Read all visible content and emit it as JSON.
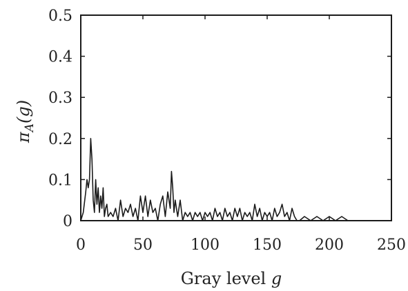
{
  "chart_data": {
    "type": "line",
    "title": "",
    "xlabel": "Gray level",
    "xlabel_var": "g",
    "ylabel": "π_A(g)",
    "ylabel_parts": {
      "pi": "π",
      "sub": "A",
      "arg": "(g)"
    },
    "xlim": [
      0,
      250
    ],
    "ylim": [
      0,
      0.5
    ],
    "xticks": [
      0,
      50,
      100,
      150,
      200,
      250
    ],
    "xtick_labels": [
      "0",
      "50",
      "100",
      "150",
      "200",
      "250"
    ],
    "yticks": [
      0,
      0.1,
      0.2,
      0.3,
      0.4,
      0.5
    ],
    "ytick_labels": [
      "0",
      "0.1",
      "0.2",
      "0.3",
      "0.4",
      "0.5"
    ],
    "grid": false,
    "series": [
      {
        "color": "#1a1a1a",
        "x": [
          0,
          2,
          4,
          5,
          6,
          7,
          8,
          9,
          10,
          11,
          12,
          13,
          14,
          15,
          16,
          17,
          18,
          19,
          20,
          21,
          22,
          24,
          26,
          28,
          30,
          32,
          34,
          36,
          38,
          40,
          42,
          44,
          46,
          48,
          50,
          52,
          54,
          56,
          58,
          60,
          62,
          64,
          66,
          68,
          70,
          72,
          73,
          74,
          75,
          76,
          78,
          80,
          82,
          84,
          86,
          88,
          90,
          92,
          94,
          96,
          98,
          100,
          102,
          104,
          106,
          108,
          110,
          112,
          114,
          116,
          118,
          120,
          122,
          124,
          126,
          128,
          130,
          132,
          134,
          136,
          138,
          140,
          142,
          144,
          146,
          148,
          150,
          152,
          154,
          156,
          158,
          160,
          162,
          164,
          166,
          168,
          170,
          172,
          174,
          176,
          180,
          185,
          190,
          195,
          200,
          205,
          210,
          215,
          220,
          230,
          240,
          250
        ],
        "y": [
          0.0,
          0.02,
          0.07,
          0.1,
          0.08,
          0.1,
          0.2,
          0.15,
          0.05,
          0.02,
          0.1,
          0.04,
          0.08,
          0.02,
          0.06,
          0.03,
          0.08,
          0.01,
          0.03,
          0.04,
          0.01,
          0.02,
          0.01,
          0.03,
          0.0,
          0.05,
          0.01,
          0.03,
          0.02,
          0.04,
          0.01,
          0.03,
          0.0,
          0.06,
          0.02,
          0.06,
          0.01,
          0.05,
          0.02,
          0.03,
          0.0,
          0.04,
          0.06,
          0.01,
          0.07,
          0.03,
          0.12,
          0.08,
          0.02,
          0.05,
          0.01,
          0.05,
          0.0,
          0.02,
          0.01,
          0.02,
          0.0,
          0.02,
          0.01,
          0.02,
          0.0,
          0.02,
          0.01,
          0.02,
          0.0,
          0.03,
          0.01,
          0.02,
          0.0,
          0.03,
          0.01,
          0.02,
          0.0,
          0.03,
          0.01,
          0.03,
          0.0,
          0.02,
          0.01,
          0.02,
          0.0,
          0.04,
          0.01,
          0.03,
          0.0,
          0.02,
          0.01,
          0.02,
          0.0,
          0.03,
          0.01,
          0.02,
          0.04,
          0.01,
          0.02,
          0.0,
          0.03,
          0.01,
          0.0,
          0.0,
          0.01,
          0.0,
          0.01,
          0.0,
          0.01,
          0.0,
          0.01,
          0.0,
          0.0,
          0.0,
          0.0,
          0.0
        ]
      }
    ]
  }
}
